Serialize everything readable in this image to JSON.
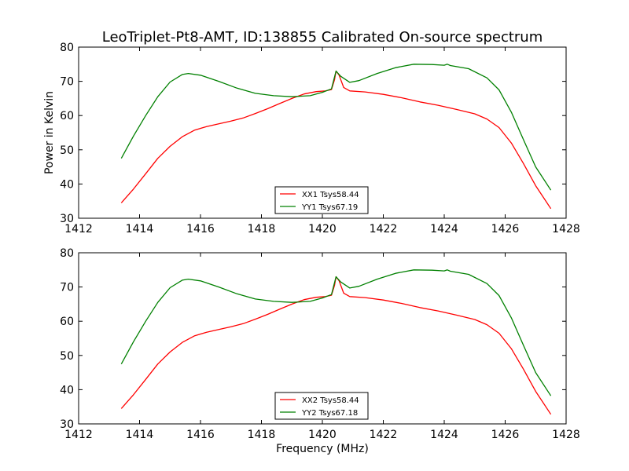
{
  "figure": {
    "title": "LeoTriplet-Pt8-AMT, ID:138855 Calibrated On-source spectrum"
  },
  "chart_data": [
    {
      "type": "line",
      "panel": "top",
      "xlabel": "",
      "ylabel": "Power in Kelvin",
      "xlim": [
        1412,
        1428
      ],
      "ylim": [
        30,
        80
      ],
      "xticks": [
        "1412",
        "1414",
        "1416",
        "1418",
        "1420",
        "1422",
        "1424",
        "1426",
        "1428"
      ],
      "yticks": [
        "30",
        "40",
        "50",
        "60",
        "70",
        "80"
      ],
      "legend_position": "lower-center",
      "series": [
        {
          "name": "XX1 Tsys58.44",
          "color": "#ff0000",
          "points": [
            [
              1413.4,
              34.5
            ],
            [
              1413.8,
              38.5
            ],
            [
              1414.2,
              43
            ],
            [
              1414.6,
              47.5
            ],
            [
              1415.0,
              51
            ],
            [
              1415.4,
              53.8
            ],
            [
              1415.8,
              55.7
            ],
            [
              1416.2,
              56.8
            ],
            [
              1416.6,
              57.6
            ],
            [
              1417.0,
              58.4
            ],
            [
              1417.4,
              59.3
            ],
            [
              1417.8,
              60.6
            ],
            [
              1418.2,
              62.0
            ],
            [
              1418.6,
              63.5
            ],
            [
              1419.0,
              65.0
            ],
            [
              1419.4,
              66.3
            ],
            [
              1419.8,
              67.0
            ],
            [
              1420.1,
              67.2
            ],
            [
              1420.3,
              67.6
            ],
            [
              1420.4,
              70.5
            ],
            [
              1420.45,
              73.0
            ],
            [
              1420.55,
              71.8
            ],
            [
              1420.7,
              68.2
            ],
            [
              1420.9,
              67.2
            ],
            [
              1421.4,
              66.9
            ],
            [
              1422.0,
              66.2
            ],
            [
              1422.6,
              65.2
            ],
            [
              1423.2,
              64.0
            ],
            [
              1423.8,
              63.0
            ],
            [
              1424.4,
              61.8
            ],
            [
              1425.0,
              60.5
            ],
            [
              1425.4,
              59.0
            ],
            [
              1425.8,
              56.5
            ],
            [
              1426.2,
              52.0
            ],
            [
              1426.6,
              46.0
            ],
            [
              1427.0,
              39.5
            ],
            [
              1427.5,
              32.8
            ]
          ]
        },
        {
          "name": "YY1 Tsys67.19",
          "color": "#008000",
          "points": [
            [
              1413.4,
              47.5
            ],
            [
              1413.8,
              54
            ],
            [
              1414.2,
              60
            ],
            [
              1414.6,
              65.5
            ],
            [
              1415.0,
              69.8
            ],
            [
              1415.4,
              72.0
            ],
            [
              1415.6,
              72.3
            ],
            [
              1416.0,
              71.8
            ],
            [
              1416.6,
              70.0
            ],
            [
              1417.2,
              68.0
            ],
            [
              1417.8,
              66.5
            ],
            [
              1418.4,
              65.8
            ],
            [
              1419.0,
              65.5
            ],
            [
              1419.6,
              65.8
            ],
            [
              1420.0,
              66.8
            ],
            [
              1420.3,
              67.8
            ],
            [
              1420.45,
              73.0
            ],
            [
              1420.6,
              71.5
            ],
            [
              1420.9,
              69.7
            ],
            [
              1421.2,
              70.2
            ],
            [
              1421.8,
              72.3
            ],
            [
              1422.4,
              74.0
            ],
            [
              1423.0,
              75.0
            ],
            [
              1423.6,
              74.9
            ],
            [
              1424.0,
              74.7
            ],
            [
              1424.1,
              75.0
            ],
            [
              1424.2,
              74.6
            ],
            [
              1424.8,
              73.7
            ],
            [
              1425.4,
              71.0
            ],
            [
              1425.8,
              67.5
            ],
            [
              1426.2,
              61.0
            ],
            [
              1426.6,
              53.0
            ],
            [
              1427.0,
              45.0
            ],
            [
              1427.5,
              38.2
            ]
          ]
        }
      ]
    },
    {
      "type": "line",
      "panel": "bottom",
      "xlabel": "Frequency (MHz)",
      "ylabel": "",
      "xlim": [
        1412,
        1428
      ],
      "ylim": [
        30,
        80
      ],
      "xticks": [
        "1412",
        "1414",
        "1416",
        "1418",
        "1420",
        "1422",
        "1424",
        "1426",
        "1428"
      ],
      "yticks": [
        "30",
        "40",
        "50",
        "60",
        "70",
        "80"
      ],
      "legend_position": "lower-center",
      "series": [
        {
          "name": "XX2 Tsys58.44",
          "color": "#ff0000",
          "points": [
            [
              1413.4,
              34.5
            ],
            [
              1413.8,
              38.5
            ],
            [
              1414.2,
              43
            ],
            [
              1414.6,
              47.5
            ],
            [
              1415.0,
              51
            ],
            [
              1415.4,
              53.8
            ],
            [
              1415.8,
              55.7
            ],
            [
              1416.2,
              56.8
            ],
            [
              1416.6,
              57.6
            ],
            [
              1417.0,
              58.4
            ],
            [
              1417.4,
              59.3
            ],
            [
              1417.8,
              60.6
            ],
            [
              1418.2,
              62.0
            ],
            [
              1418.6,
              63.5
            ],
            [
              1419.0,
              65.0
            ],
            [
              1419.4,
              66.3
            ],
            [
              1419.8,
              67.0
            ],
            [
              1420.1,
              67.2
            ],
            [
              1420.3,
              67.6
            ],
            [
              1420.4,
              70.5
            ],
            [
              1420.45,
              73.0
            ],
            [
              1420.55,
              71.8
            ],
            [
              1420.7,
              68.2
            ],
            [
              1420.9,
              67.2
            ],
            [
              1421.4,
              66.9
            ],
            [
              1422.0,
              66.2
            ],
            [
              1422.6,
              65.2
            ],
            [
              1423.2,
              64.0
            ],
            [
              1423.8,
              63.0
            ],
            [
              1424.4,
              61.8
            ],
            [
              1425.0,
              60.5
            ],
            [
              1425.4,
              59.0
            ],
            [
              1425.8,
              56.5
            ],
            [
              1426.2,
              52.0
            ],
            [
              1426.6,
              46.0
            ],
            [
              1427.0,
              39.5
            ],
            [
              1427.5,
              32.8
            ]
          ]
        },
        {
          "name": "YY2 Tsys67.18",
          "color": "#008000",
          "points": [
            [
              1413.4,
              47.5
            ],
            [
              1413.8,
              54
            ],
            [
              1414.2,
              60
            ],
            [
              1414.6,
              65.5
            ],
            [
              1415.0,
              69.8
            ],
            [
              1415.4,
              72.0
            ],
            [
              1415.6,
              72.3
            ],
            [
              1416.0,
              71.8
            ],
            [
              1416.6,
              70.0
            ],
            [
              1417.2,
              68.0
            ],
            [
              1417.8,
              66.5
            ],
            [
              1418.4,
              65.8
            ],
            [
              1419.0,
              65.5
            ],
            [
              1419.6,
              65.8
            ],
            [
              1420.0,
              66.8
            ],
            [
              1420.3,
              67.8
            ],
            [
              1420.45,
              73.0
            ],
            [
              1420.6,
              71.5
            ],
            [
              1420.9,
              69.7
            ],
            [
              1421.2,
              70.2
            ],
            [
              1421.8,
              72.3
            ],
            [
              1422.4,
              74.0
            ],
            [
              1423.0,
              75.0
            ],
            [
              1423.6,
              74.9
            ],
            [
              1424.0,
              74.7
            ],
            [
              1424.1,
              75.0
            ],
            [
              1424.2,
              74.6
            ],
            [
              1424.8,
              73.7
            ],
            [
              1425.4,
              71.0
            ],
            [
              1425.8,
              67.5
            ],
            [
              1426.2,
              61.0
            ],
            [
              1426.6,
              53.0
            ],
            [
              1427.0,
              45.0
            ],
            [
              1427.5,
              38.2
            ]
          ]
        }
      ]
    }
  ]
}
